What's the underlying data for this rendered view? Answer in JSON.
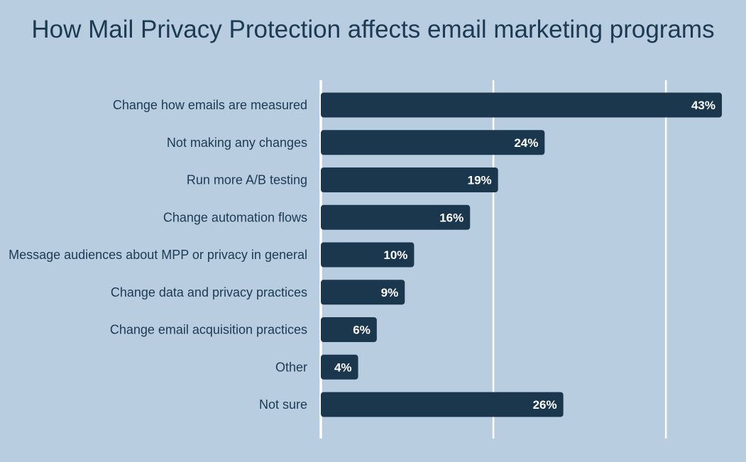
{
  "chart_data": {
    "type": "bar",
    "orientation": "horizontal",
    "title": "How Mail Privacy Protection affects email marketing programs",
    "categories": [
      "Change how emails are measured",
      "Not making any changes",
      "Run more A/B testing",
      "Change automation flows",
      "Message audiences about MPP or privacy in general",
      "Change data and privacy practices",
      "Change email acquisition practices",
      "Other",
      "Not sure"
    ],
    "values": [
      43,
      24,
      19,
      16,
      10,
      9,
      6,
      4,
      26
    ],
    "value_labels": [
      "43%",
      "24%",
      "19%",
      "16%",
      "10%",
      "9%",
      "6%",
      "4%",
      "26%"
    ],
    "xlim": [
      0,
      45
    ],
    "gridlines": [
      0,
      18.5,
      37
    ],
    "grid": true,
    "legend": "none",
    "xlabel": "",
    "ylabel": "",
    "colors": {
      "background": "#b9cde0",
      "bar": "#1b374e",
      "grid": "#ffffff",
      "text": "#1c3a52",
      "value_text": "#ffffff"
    }
  }
}
